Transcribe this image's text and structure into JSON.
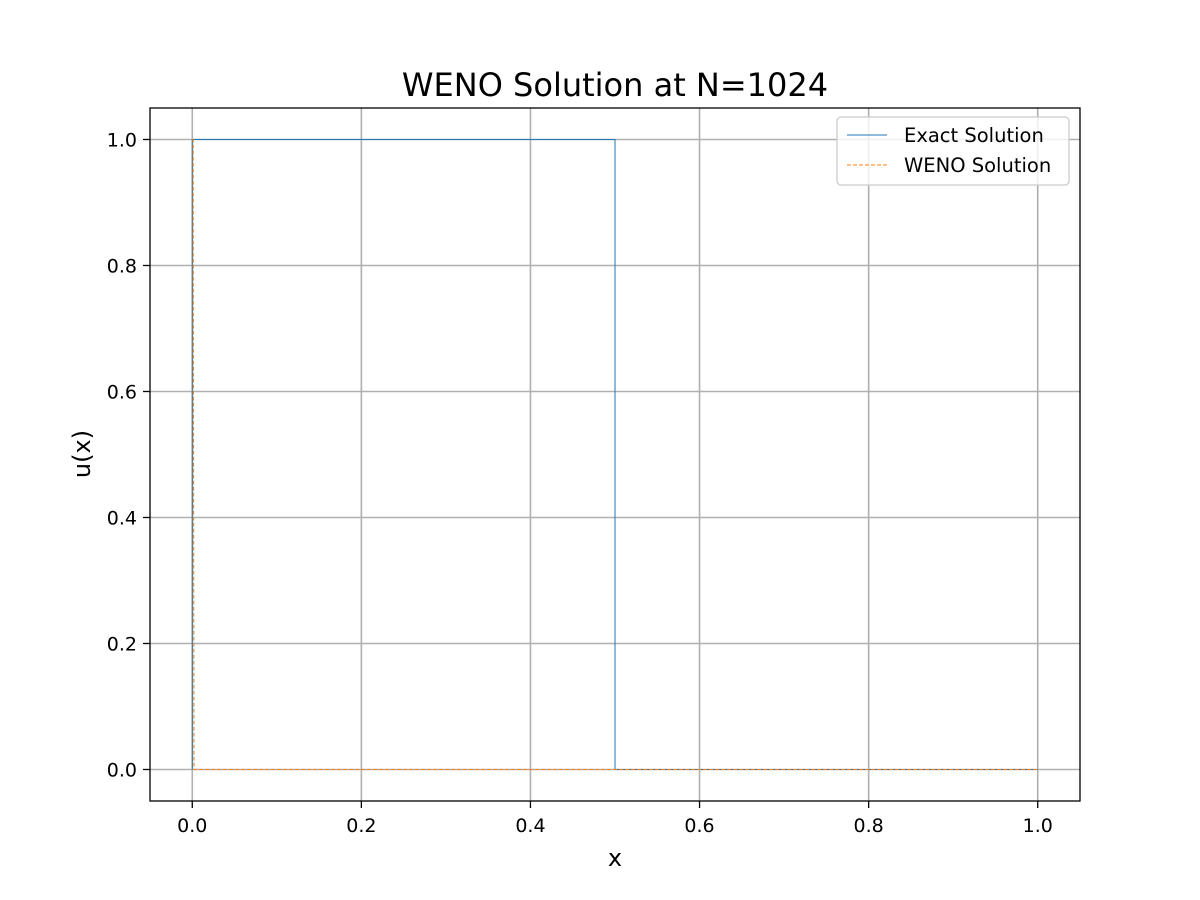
{
  "chart_data": {
    "type": "line",
    "title": "WENO Solution at N=1024",
    "xlabel": "x",
    "ylabel": "u(x)",
    "xlim": [
      -0.05,
      1.05
    ],
    "ylim": [
      -0.05,
      1.05
    ],
    "xticks": [
      0.0,
      0.2,
      0.4,
      0.6,
      0.8,
      1.0
    ],
    "xtick_labels": [
      "0.0",
      "0.2",
      "0.4",
      "0.6",
      "0.8",
      "1.0"
    ],
    "yticks": [
      0.0,
      0.2,
      0.4,
      0.6,
      0.8,
      1.0
    ],
    "ytick_labels": [
      "0.0",
      "0.2",
      "0.4",
      "0.6",
      "0.8",
      "1.0"
    ],
    "grid": true,
    "legend_position": "top-right",
    "series": [
      {
        "name": "Exact Solution",
        "color": "#1f77b4",
        "line_style": "solid",
        "x": [
          0.0,
          0.0,
          0.5,
          0.5,
          1.0
        ],
        "y": [
          0.0,
          1.0,
          1.0,
          0.0,
          0.0
        ]
      },
      {
        "name": "WENO Solution",
        "color": "#ff7f0e",
        "line_style": "dashed",
        "x": [
          0.0,
          0.001,
          0.002,
          1.0
        ],
        "y": [
          1.0,
          1.0,
          0.0,
          0.0
        ]
      }
    ]
  }
}
